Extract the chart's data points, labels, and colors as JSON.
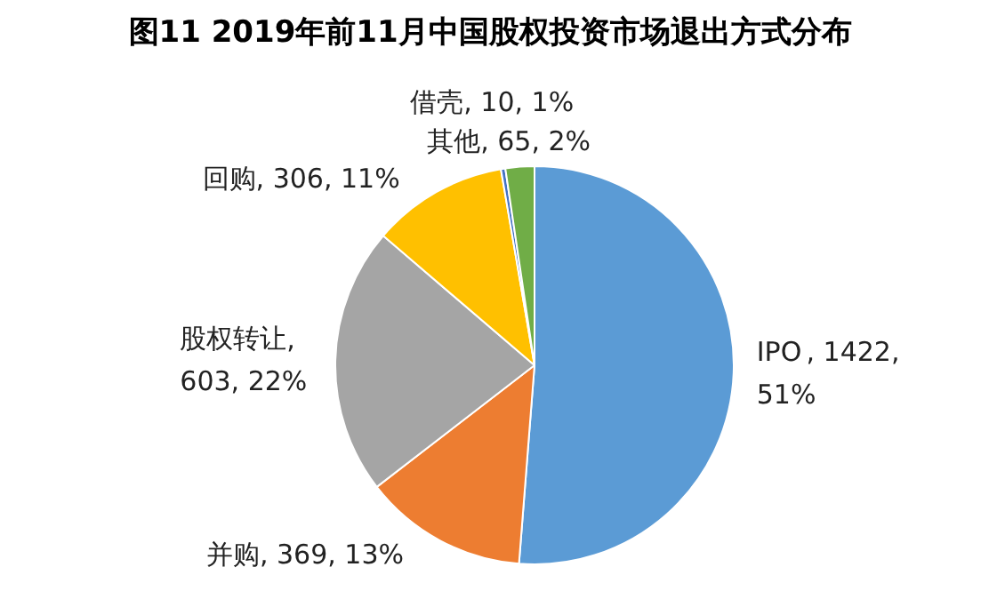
{
  "chart_data": {
    "type": "pie",
    "title": "图11  2019年前11月中国股权投资市场退出方式分布",
    "categories": [
      "IPO",
      "并购",
      "股权转让",
      "回购",
      "借壳",
      "其他"
    ],
    "values": [
      1422,
      369,
      603,
      306,
      10,
      65
    ],
    "colors": [
      "#5b9bd5",
      "#ed7d31",
      "#a5a5a5",
      "#ffc000",
      "#4472c4",
      "#70ad47"
    ],
    "value_labels": [
      ", 1422, 51%",
      ", 369, 13%",
      ", 603, 22%",
      ", 306, 11%",
      ", 10, 1%",
      ", 65, 2%"
    ],
    "legend": false
  }
}
